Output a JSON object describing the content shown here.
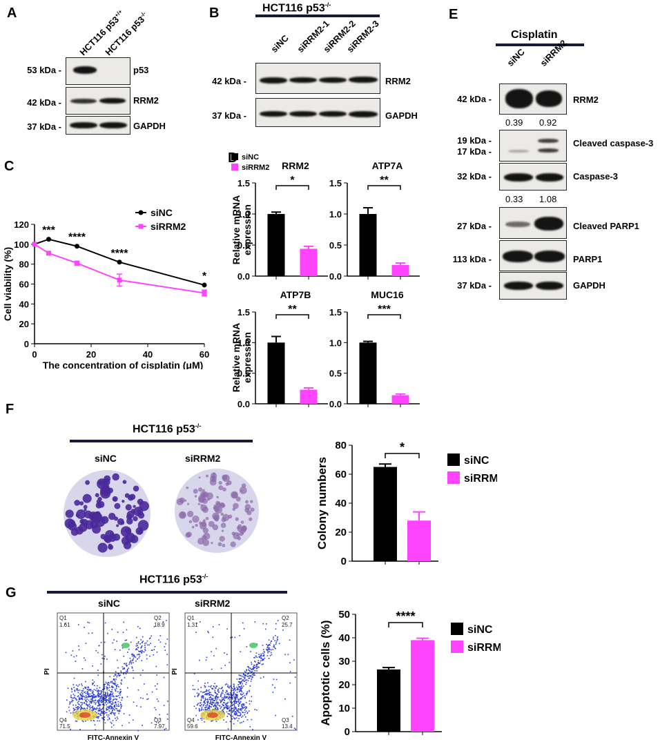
{
  "panels": {
    "A": "A",
    "B": "B",
    "C": "C",
    "D": "D",
    "E": "E",
    "F": "F",
    "G": "G"
  },
  "panelA": {
    "lanes": [
      "HCT116 p53",
      "HCT116 p53"
    ],
    "lane_sup": [
      "+/+",
      "-/-"
    ],
    "rows": [
      {
        "kda": "53 kDa -",
        "label": "p53"
      },
      {
        "kda": "42 kDa -",
        "label": "RRM2"
      },
      {
        "kda": "37 kDa -",
        "label": "GAPDH"
      }
    ]
  },
  "panelB": {
    "title": "HCT116 p53",
    "title_sup": "-/-",
    "lanes": [
      "siNC",
      "siRRM2-1",
      "siRRM2-2",
      "siRRM2-3"
    ],
    "rows": [
      {
        "kda": "42 kDa -",
        "label": "RRM2"
      },
      {
        "kda": "37 kDa -",
        "label": "GAPDH"
      }
    ]
  },
  "panelE": {
    "title": "Cisplatin",
    "lanes": [
      "siNC",
      "siRRM2"
    ],
    "rows": [
      {
        "kda": "42 kDa -",
        "label": "RRM2"
      },
      {
        "kda": "19 kDa -",
        "kda2": "17 kDa -",
        "label": "Cleaved caspase-3"
      },
      {
        "kda": "32 kDa -",
        "label": "Caspase-3"
      },
      {
        "kda": "27 kDa -",
        "label": "Cleaved PARP1"
      },
      {
        "kda": "113 kDa -",
        "label": "PARP1"
      },
      {
        "kda": "37 kDa -",
        "label": "GAPDH"
      }
    ],
    "quant_rrm2": [
      "0.39",
      "0.92"
    ],
    "quant_casp": [
      "0.33",
      "1.08"
    ]
  },
  "colors": {
    "siNC": "#000000",
    "siRRM2": "#ff44ff",
    "titlebar": "#15193a"
  },
  "chart_data": [
    {
      "id": "C",
      "type": "line",
      "xlabel": "The concentration of cisplatin (μM)",
      "ylabel": "Cell viability  (%)",
      "xlim": [
        0,
        60
      ],
      "ylim": [
        0,
        120
      ],
      "xticks": [
        0,
        20,
        40,
        60
      ],
      "yticks": [
        0,
        20,
        40,
        60,
        80,
        100,
        120
      ],
      "series": [
        {
          "name": "siNC",
          "x": [
            0,
            5,
            15,
            30,
            60
          ],
          "y": [
            100,
            105,
            98,
            82,
            59
          ],
          "err": [
            0,
            0,
            0,
            0,
            0
          ]
        },
        {
          "name": "siRRM2",
          "x": [
            0,
            5,
            15,
            30,
            60
          ],
          "y": [
            100,
            91,
            81,
            64,
            51
          ],
          "err": [
            0,
            0,
            2,
            6,
            3
          ]
        }
      ],
      "annotations": [
        {
          "x": 5,
          "text": "***"
        },
        {
          "x": 15,
          "text": "****"
        },
        {
          "x": 30,
          "text": "****"
        },
        {
          "x": 60,
          "text": "*"
        }
      ],
      "legend": "top-right"
    },
    {
      "id": "D",
      "type": "bar",
      "ylabel": "Relative mRNA expression",
      "legend": [
        "siNC",
        "siRRM2"
      ],
      "subplots": [
        {
          "title": "RRM2",
          "values": [
            1.0,
            0.44
          ],
          "err": [
            0.03,
            0.04
          ],
          "sig": "*",
          "ylim": [
            0,
            1.5
          ],
          "yticks": [
            "0.0",
            "0.5",
            "1.0",
            "1.5"
          ]
        },
        {
          "title": "ATP7A",
          "values": [
            1.0,
            0.18
          ],
          "err": [
            0.1,
            0.03
          ],
          "sig": "**",
          "ylim": [
            0,
            1.5
          ],
          "yticks": [
            "0.0",
            "0.5",
            "1.0",
            "1.5"
          ]
        },
        {
          "title": "ATP7B",
          "values": [
            1.0,
            0.23
          ],
          "err": [
            0.1,
            0.03
          ],
          "sig": "**",
          "ylim": [
            0,
            1.5
          ],
          "yticks": [
            "0.0",
            "0.5",
            "1.0",
            "1.5"
          ]
        },
        {
          "title": "MUC16",
          "values": [
            1.0,
            0.14
          ],
          "err": [
            0.02,
            0.02
          ],
          "sig": "***",
          "ylim": [
            0,
            1.5
          ],
          "yticks": [
            "0.0",
            "0.5",
            "1.0",
            "1.5"
          ]
        }
      ]
    },
    {
      "id": "F",
      "type": "bar",
      "ylabel": "Colony numbers",
      "categories": [
        "siNC",
        "siRRM2"
      ],
      "values": [
        65,
        28
      ],
      "err": [
        2,
        6
      ],
      "sig": "*",
      "ylim": [
        0,
        80
      ],
      "yticks": [
        0,
        20,
        40,
        60,
        80
      ],
      "legend": [
        "siNC",
        "siRRM2"
      ]
    },
    {
      "id": "G",
      "type": "bar",
      "ylabel": "Apoptotic cells (%)",
      "categories": [
        "siNC",
        "siRRM2"
      ],
      "values": [
        26.5,
        39
      ],
      "err": [
        0.8,
        0.8
      ],
      "sig": "****",
      "ylim": [
        0,
        50
      ],
      "yticks": [
        0,
        10,
        20,
        30,
        40,
        50
      ],
      "legend": [
        "siNC",
        "siRRM2"
      ]
    }
  ],
  "panelF": {
    "title": "HCT116 p53",
    "title_sup": "-/-",
    "dishes": [
      "siNC",
      "siRRM2"
    ]
  },
  "panelG": {
    "title": "HCT116 p53",
    "title_sup": "-/-",
    "plots": [
      {
        "name": "siNC",
        "q1": "Q1",
        "q1v": "1.61",
        "q2": "Q2",
        "q2v": "18.9",
        "q3": "Q3",
        "q3v": "7.97",
        "q4": "Q4",
        "q4v": "71.5"
      },
      {
        "name": "siRRM2",
        "q1": "Q1",
        "q1v": "1.31",
        "q2": "Q2",
        "q2v": "25.7",
        "q3": "Q3",
        "q3v": "13.4",
        "q4": "Q4",
        "q4v": "59.6"
      }
    ],
    "xaxis": "FITC-Annexin V",
    "yaxis": "PI"
  }
}
